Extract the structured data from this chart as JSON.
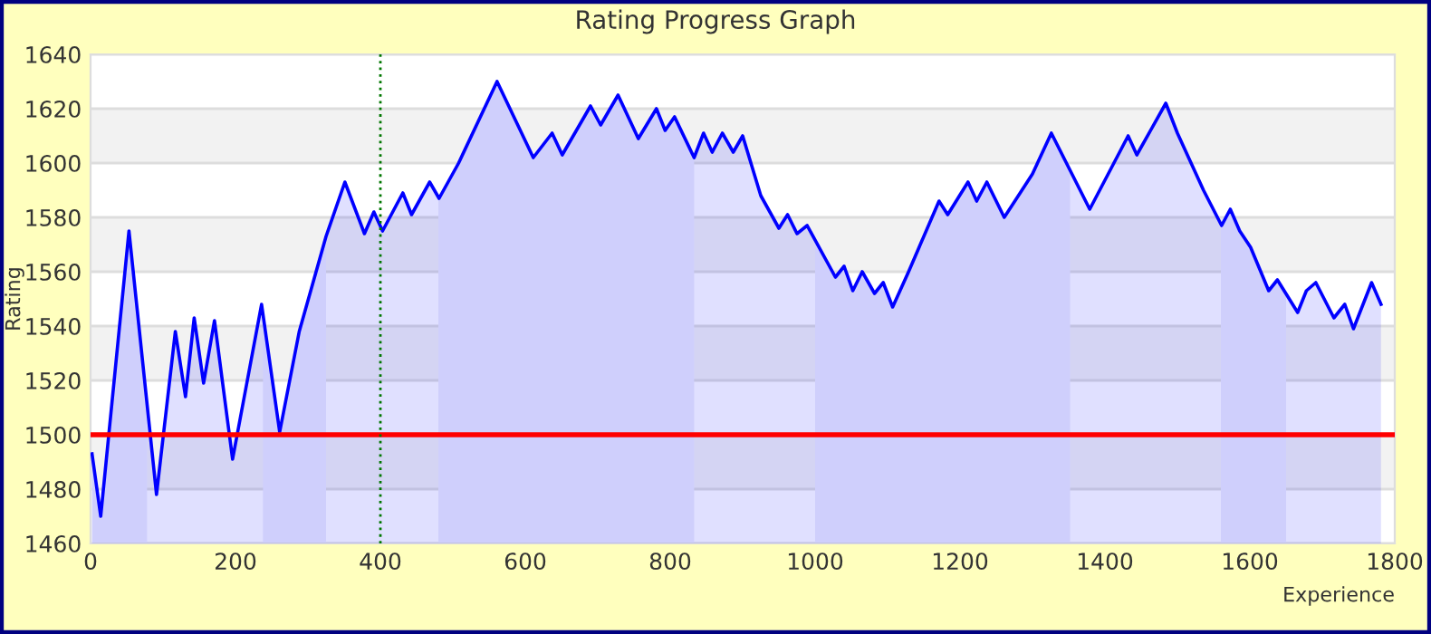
{
  "chart_data": {
    "type": "area",
    "title": "Rating Progress Graph",
    "xlabel": "Experience",
    "ylabel": "Rating",
    "series": [
      {
        "color": "#0000ff",
        "x": [
          2,
          14,
          53,
          91,
          117,
          131,
          143,
          156,
          171,
          196,
          236,
          261,
          288,
          325,
          351,
          378,
          391,
          403,
          431,
          443,
          468,
          481,
          508,
          561,
          611,
          637,
          651,
          690,
          704,
          728,
          756,
          781,
          793,
          806,
          833,
          846,
          858,
          872,
          887,
          900,
          925,
          950,
          962,
          975,
          989,
          1028,
          1040,
          1052,
          1065,
          1082,
          1094,
          1107,
          1129,
          1171,
          1183,
          1211,
          1223,
          1237,
          1261,
          1283,
          1300,
          1326,
          1379,
          1432,
          1444,
          1484,
          1500,
          1536,
          1561,
          1573,
          1586,
          1601,
          1626,
          1638,
          1666,
          1678,
          1691,
          1716,
          1731,
          1743,
          1768,
          1781
        ],
        "values": [
          1493,
          1470,
          1575,
          1478,
          1538,
          1514,
          1543,
          1519,
          1542,
          1491,
          1548,
          1501,
          1538,
          1573,
          1593,
          1574,
          1582,
          1575,
          1589,
          1581,
          1593,
          1587,
          1600,
          1630,
          1602,
          1611,
          1603,
          1621,
          1614,
          1625,
          1609,
          1620,
          1612,
          1617,
          1602,
          1611,
          1604,
          1611,
          1604,
          1610,
          1588,
          1576,
          1581,
          1574,
          1577,
          1558,
          1562,
          1553,
          1560,
          1552,
          1556,
          1547,
          1560,
          1586,
          1581,
          1593,
          1586,
          1593,
          1580,
          1589,
          1596,
          1611,
          1583,
          1610,
          1603,
          1622,
          1611,
          1590,
          1577,
          1583,
          1575,
          1569,
          1553,
          1557,
          1545,
          1553,
          1556,
          1543,
          1548,
          1539,
          1556,
          1548
        ]
      }
    ],
    "bands": [
      {
        "axis": "x",
        "from": 0,
        "to": 78,
        "color": "#ececfc"
      },
      {
        "axis": "x",
        "from": 238,
        "to": 325,
        "color": "#ececfc"
      },
      {
        "axis": "x",
        "from": 480,
        "to": 833,
        "color": "#ececfc"
      },
      {
        "axis": "x",
        "from": 1000,
        "to": 1352,
        "color": "#ececfc"
      },
      {
        "axis": "x",
        "from": 1560,
        "to": 1650,
        "color": "#ececfc"
      },
      {
        "axis": "y",
        "from": 1480,
        "to": 1500,
        "color": "#f2f2f2"
      },
      {
        "axis": "y",
        "from": 1520,
        "to": 1540,
        "color": "#f2f2f2"
      },
      {
        "axis": "y",
        "from": 1560,
        "to": 1580,
        "color": "#f2f2f2"
      },
      {
        "axis": "y",
        "from": 1600,
        "to": 1620,
        "color": "#f2f2f2"
      }
    ],
    "ref_lines": [
      {
        "axis": "y",
        "value": 1500,
        "color": "#ff0000",
        "line_style": "solid"
      },
      {
        "axis": "x",
        "value": 400,
        "color": "#007700",
        "line_style": "dotted"
      }
    ],
    "xlim": [
      0,
      1800
    ],
    "xticks": [
      0,
      200,
      400,
      600,
      800,
      1000,
      1200,
      1400,
      1600,
      1800
    ],
    "ylim": [
      1460,
      1640
    ],
    "yticks": [
      1460,
      1480,
      1500,
      1520,
      1540,
      1560,
      1580,
      1600,
      1620,
      1640
    ],
    "grid": "y",
    "legend": false
  }
}
